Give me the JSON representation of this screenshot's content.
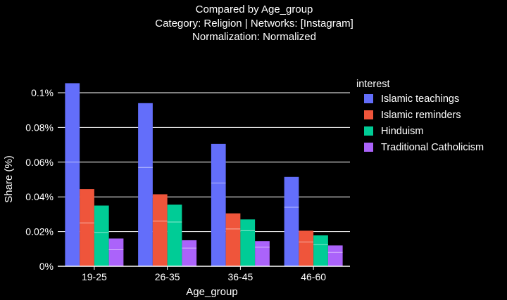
{
  "chart_data": {
    "type": "bar",
    "title_lines": [
      "Compared by Age_group",
      "Category: Religion | Networks: [Instagram]",
      "Normalization: Normalized"
    ],
    "xlabel": "Age_group",
    "ylabel": "Share (%)",
    "categories": [
      "19-25",
      "26-35",
      "36-45",
      "46-60"
    ],
    "ylim": [
      0,
      0.1
    ],
    "yticks": [
      0,
      0.02,
      0.04,
      0.06,
      0.08,
      0.1
    ],
    "ytick_labels": [
      "0%",
      "0.02%",
      "0.04%",
      "0.06%",
      "0.08%",
      "0.1%"
    ],
    "grid": true,
    "legend": {
      "title": "interest",
      "position": "right"
    },
    "series": [
      {
        "name": "Islamic teachings",
        "color": "#636efa",
        "values": [
          0.1055,
          0.094,
          0.0705,
          0.0515
        ],
        "inner_marks": [
          0.06,
          0.057,
          0.048,
          0.034
        ]
      },
      {
        "name": "Islamic reminders",
        "color": "#ef553b",
        "values": [
          0.0445,
          0.0415,
          0.0305,
          0.0205
        ],
        "inner_marks": [
          0.025,
          0.026,
          0.0215,
          0.014
        ]
      },
      {
        "name": "Hinduism",
        "color": "#00cc96",
        "values": [
          0.035,
          0.0355,
          0.027,
          0.0178
        ],
        "inner_marks": [
          0.0195,
          0.0255,
          0.0205,
          0.0125
        ]
      },
      {
        "name": "Traditional Catholicism",
        "color": "#ab63fa",
        "values": [
          0.016,
          0.015,
          0.0145,
          0.012
        ],
        "inner_marks": [
          0.0095,
          0.0105,
          0.011,
          0.008
        ]
      }
    ]
  }
}
